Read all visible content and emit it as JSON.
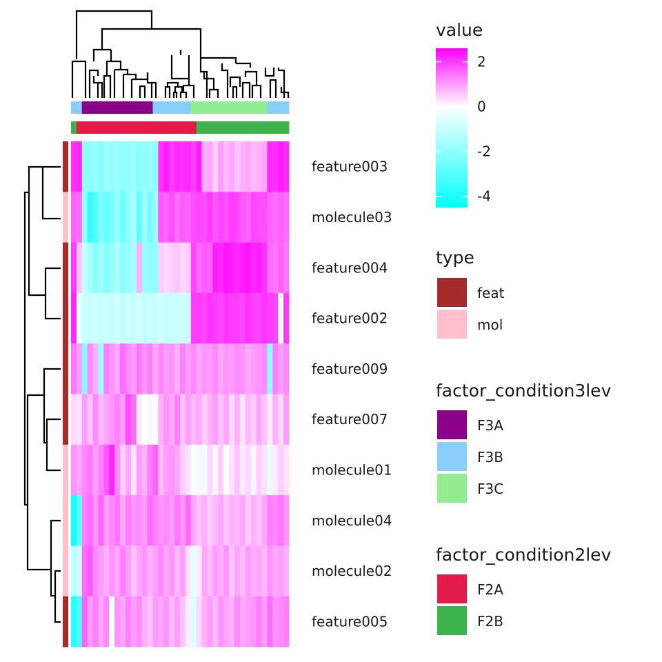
{
  "chart_data": {
    "type": "heatmap",
    "rows": [
      "feature003",
      "molecule03",
      "feature004",
      "feature002",
      "feature009",
      "feature007",
      "molecule01",
      "molecule04",
      "molecule02",
      "feature005"
    ],
    "row_type": [
      "feat",
      "mol",
      "feat",
      "feat",
      "feat",
      "feat",
      "mol",
      "mol",
      "mol",
      "feat"
    ],
    "column_count": 40,
    "color_scale": {
      "title": "value",
      "stops": [
        {
          "value": -4.5,
          "color": "#00ffff"
        },
        {
          "value": 0,
          "color": "#ffffff"
        },
        {
          "value": 2.6,
          "color": "#ff00ff"
        }
      ],
      "ticks": [
        {
          "value": 2,
          "label": "2"
        },
        {
          "value": 0,
          "label": "0"
        },
        {
          "value": -2,
          "label": "-2"
        },
        {
          "value": -4,
          "label": "-4"
        }
      ]
    },
    "annotations": {
      "type": {
        "title": "type",
        "levels": [
          {
            "label": "feat",
            "color": "#a52a2a"
          },
          {
            "label": "mol",
            "color": "#ffc0cb"
          }
        ]
      },
      "factor_condition3lev": {
        "title": "factor_condition3lev",
        "levels": [
          {
            "label": "F3A",
            "color": "#8b008b"
          },
          {
            "label": "F3B",
            "color": "#87cefa"
          },
          {
            "label": "F3C",
            "color": "#90ee90"
          }
        ],
        "columns": [
          "F3B",
          "F3B",
          "F3A",
          "F3A",
          "F3A",
          "F3A",
          "F3A",
          "F3A",
          "F3A",
          "F3A",
          "F3A",
          "F3A",
          "F3A",
          "F3A",
          "F3A",
          "F3B",
          "F3B",
          "F3B",
          "F3B",
          "F3B",
          "F3B",
          "F3B",
          "F3C",
          "F3C",
          "F3C",
          "F3C",
          "F3C",
          "F3C",
          "F3C",
          "F3C",
          "F3C",
          "F3C",
          "F3C",
          "F3C",
          "F3C",
          "F3C",
          "F3B",
          "F3B",
          "F3B",
          "F3B"
        ]
      },
      "factor_condition2lev": {
        "title": "factor_condition2lev",
        "levels": [
          {
            "label": "F2A",
            "color": "#e41a4b"
          },
          {
            "label": "F2B",
            "color": "#3cb44b"
          }
        ],
        "columns": [
          "F2B",
          "F2A",
          "F2A",
          "F2A",
          "F2A",
          "F2A",
          "F2A",
          "F2A",
          "F2A",
          "F2A",
          "F2A",
          "F2A",
          "F2A",
          "F2A",
          "F2A",
          "F2A",
          "F2A",
          "F2A",
          "F2A",
          "F2A",
          "F2A",
          "F2A",
          "F2A",
          "F2B",
          "F2B",
          "F2B",
          "F2B",
          "F2B",
          "F2B",
          "F2B",
          "F2B",
          "F2B",
          "F2B",
          "F2B",
          "F2B",
          "F2B",
          "F2B",
          "F2B",
          "F2B",
          "F2B"
        ]
      }
    },
    "values": [
      [
        2.1,
        2.2,
        -1.9,
        -2.0,
        -1.8,
        -2.1,
        -1.7,
        -1.9,
        -1.8,
        -2.0,
        -1.9,
        -1.8,
        -2.0,
        -1.9,
        -1.8,
        -2.0,
        2.1,
        2.3,
        2.0,
        2.2,
        2.1,
        2.2,
        2.0,
        2.3,
        0.8,
        0.9,
        0.5,
        1.0,
        0.7,
        0.9,
        0.6,
        0.8,
        0.9,
        0.7,
        0.8,
        0.9,
        2.2,
        2.1,
        2.3,
        2.2
      ],
      [
        1.6,
        1.5,
        -1.8,
        -3.6,
        -3.0,
        -2.3,
        -2.7,
        -2.4,
        -1.8,
        -2.6,
        -1.9,
        -1.5,
        -2.8,
        -1.6,
        -2.5,
        -1.7,
        1.7,
        1.6,
        1.8,
        1.5,
        1.7,
        1.6,
        1.8,
        1.9,
        1.8,
        2.0,
        1.7,
        1.9,
        1.8,
        2.0,
        1.9,
        1.7,
        1.6,
        1.9,
        1.8,
        1.8,
        1.6,
        1.5,
        1.6,
        1.5
      ],
      [
        2.0,
        0.6,
        -1.0,
        -1.6,
        -2.0,
        -1.7,
        -2.1,
        -1.8,
        -1.5,
        -2.0,
        -1.9,
        -1.6,
        0.8,
        -1.8,
        -1.9,
        -2.0,
        0.5,
        0.4,
        0.5,
        0.6,
        0.4,
        0.5,
        1.9,
        1.5,
        1.7,
        1.6,
        2.3,
        2.2,
        2.4,
        2.3,
        2.2,
        2.3,
        2.4,
        2.2,
        2.3,
        2.1,
        1.5,
        1.4,
        1.6,
        1.4
      ],
      [
        2.2,
        -0.6,
        -0.9,
        -1.0,
        -0.8,
        -1.1,
        -0.9,
        -1.0,
        -0.8,
        -1.1,
        -0.9,
        -1.0,
        -0.8,
        -1.1,
        -0.9,
        -1.0,
        -0.8,
        -1.1,
        -0.9,
        -1.0,
        -0.8,
        -1.0,
        2.0,
        2.0,
        1.9,
        2.1,
        2.0,
        1.9,
        2.1,
        2.0,
        2.0,
        1.9,
        2.1,
        2.0,
        1.9,
        2.1,
        2.0,
        1.9,
        -0.4,
        2.0
      ],
      [
        1.4,
        1.0,
        -2.2,
        1.2,
        0.8,
        -1.8,
        1.3,
        1.1,
        0.9,
        1.5,
        1.2,
        1.0,
        1.4,
        1.1,
        1.3,
        0.9,
        1.2,
        1.0,
        1.1,
        0.8,
        1.3,
        1.0,
        1.2,
        0.9,
        1.1,
        1.0,
        1.2,
        0.9,
        1.1,
        1.0,
        1.2,
        1.1,
        0.9,
        1.0,
        1.1,
        1.2,
        -2.0,
        1.3,
        1.0,
        1.2
      ],
      [
        0.4,
        0.3,
        1.0,
        0.6,
        1.2,
        0.7,
        0.9,
        1.1,
        1.3,
        1.0,
        1.8,
        1.5,
        0.2,
        0.0,
        0.1,
        0.0,
        0.8,
        1.1,
        0.9,
        1.3,
        0.6,
        1.0,
        0.7,
        0.9,
        0.5,
        0.8,
        1.0,
        0.6,
        0.9,
        0.4,
        0.8,
        0.3,
        0.7,
        0.5,
        0.9,
        0.6,
        0.2,
        0.8,
        0.4,
        1.0
      ],
      [
        1.1,
        0.9,
        1.2,
        1.4,
        1.0,
        1.3,
        1.7,
        2.2,
        1.2,
        0.5,
        0.9,
        0.3,
        1.0,
        0.8,
        1.3,
        1.6,
        0.7,
        1.0,
        1.1,
        0.9,
        0.5,
        0.3,
        -0.2,
        0.1,
        -0.3,
        0.4,
        0.1,
        0.5,
        -0.1,
        0.3,
        0.6,
        0.2,
        0.4,
        0.1,
        0.5,
        0.3,
        -0.4,
        0.2,
        0.5,
        0.3
      ],
      [
        -4.2,
        -2.8,
        1.3,
        1.5,
        1.1,
        1.6,
        1.0,
        1.2,
        1.4,
        0.9,
        1.3,
        1.1,
        1.2,
        1.0,
        1.5,
        1.3,
        1.1,
        1.2,
        1.0,
        1.4,
        1.1,
        1.5,
        0.9,
        0.6,
        0.8,
        0.5,
        0.7,
        0.9,
        0.6,
        0.8,
        0.7,
        0.9,
        0.5,
        0.8,
        0.6,
        0.9,
        1.3,
        1.2,
        1.4,
        1.1
      ],
      [
        -1.2,
        -0.8,
        1.5,
        1.7,
        1.2,
        1.0,
        0.8,
        1.1,
        0.9,
        1.3,
        1.0,
        0.6,
        0.9,
        1.1,
        0.8,
        1.0,
        1.2,
        0.9,
        1.1,
        0.7,
        1.0,
        0.3,
        -0.4,
        0.2,
        0.9,
        0.7,
        1.0,
        0.8,
        1.1,
        0.6,
        0.9,
        0.7,
        1.0,
        0.8,
        0.9,
        0.7,
        1.1,
        0.9,
        1.0,
        0.8
      ],
      [
        -3.8,
        -3.2,
        1.6,
        1.0,
        1.3,
        0.9,
        1.2,
        -0.2,
        1.1,
        0.9,
        1.3,
        1.0,
        1.2,
        0.8,
        0.6,
        1.0,
        0.9,
        1.1,
        0.7,
        1.0,
        0.6,
        0.2,
        -0.6,
        0.4,
        0.8,
        1.0,
        0.7,
        1.1,
        0.9,
        0.8,
        1.2,
        0.9,
        1.0,
        1.1,
        1.3,
        1.0,
        1.5,
        1.1,
        1.2,
        1.3
      ]
    ]
  }
}
